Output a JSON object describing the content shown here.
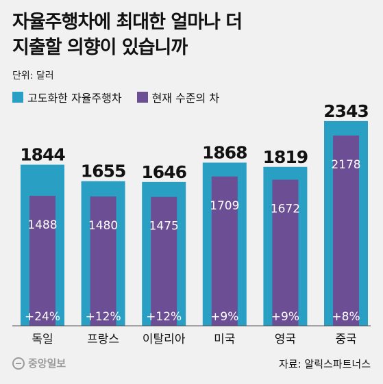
{
  "title_line1": "자율주행차에 최대한 얼마나 더",
  "title_line2": "지출할 의향이 있습니까",
  "unit": "단위: 달러",
  "legend": {
    "advanced": "고도화한 자율주행차",
    "current": "현재 수준의 차"
  },
  "colors": {
    "advanced": "#2a9fc4",
    "current": "#6b4e94",
    "background": "#f1f1f1"
  },
  "footer": {
    "logo_text": "중앙일보",
    "source": "자료: 알릭스파트너스"
  },
  "chart_data": {
    "type": "bar",
    "categories": [
      "독일",
      "프랑스",
      "이탈리아",
      "미국",
      "영국",
      "중국"
    ],
    "series": [
      {
        "name": "고도화한 자율주행차",
        "values": [
          1844,
          1655,
          1646,
          1868,
          1819,
          2343
        ]
      },
      {
        "name": "현재 수준의 차",
        "values": [
          1488,
          1480,
          1475,
          1709,
          1672,
          2178
        ]
      }
    ],
    "value_labels_advanced": [
      "1844",
      "1655",
      "1646",
      "1868",
      "1819",
      "2343"
    ],
    "value_labels_current": [
      "1488",
      "1480",
      "1475",
      "1709",
      "1672",
      "2178"
    ],
    "pct_labels": [
      "+24%",
      "+12%",
      "+12%",
      "+9%",
      "+9%",
      "+8%"
    ],
    "ylim": [
      0,
      2350
    ]
  }
}
